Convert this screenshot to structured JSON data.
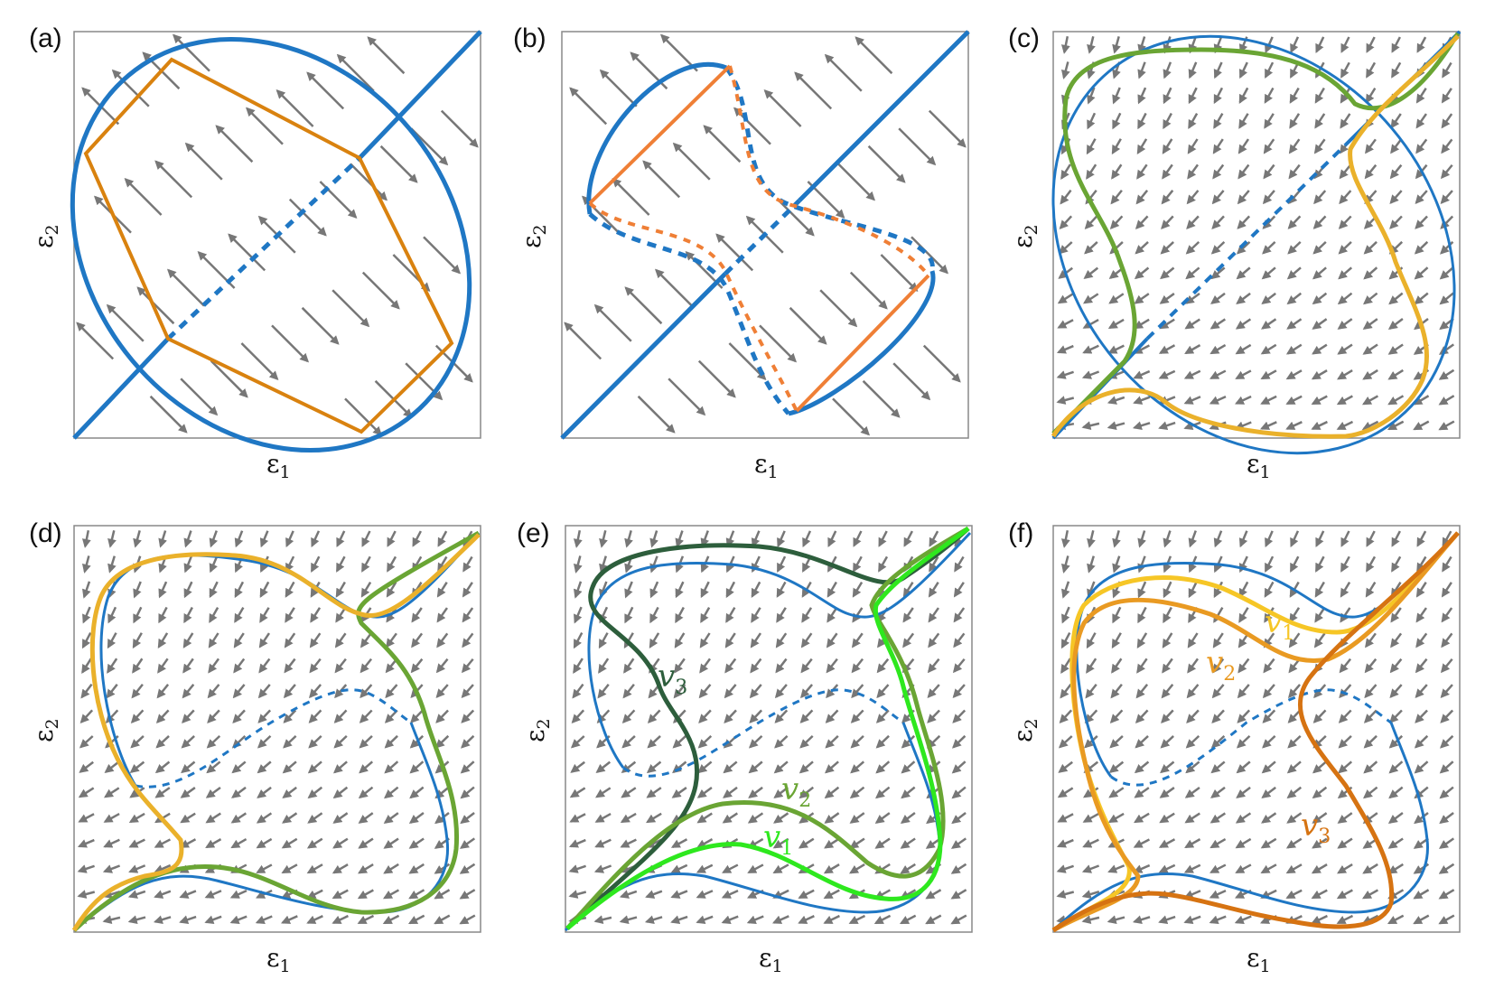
{
  "figure": {
    "colors": {
      "blue": "#1f77c4",
      "orange": "#d9820f",
      "orange_light": "#ef7f36",
      "arrow": "#777777",
      "frame": "#888888",
      "green": "#6aa534",
      "yellow": "#eab12b",
      "green_dark": "#2d5e3c",
      "green_light": "#2ee81e",
      "gold": "#f6c626",
      "orange_mid": "#e99a22",
      "orange_dark": "#d67312"
    },
    "axes": {
      "xlabel": "ε",
      "xlabel_sub": "1",
      "ylabel": "ε",
      "ylabel_sub": "2"
    },
    "panels": [
      {
        "label": "(a)",
        "field": "diagonal-long"
      },
      {
        "label": "(b)",
        "field": "diagonal-long"
      },
      {
        "label": "(c)",
        "field": "short-grid"
      },
      {
        "label": "(d)",
        "field": "short-grid"
      },
      {
        "label": "(e)",
        "field": "short-grid",
        "curve_labels": [
          {
            "text": "v",
            "sub": "3",
            "color": "#2d5e3c"
          },
          {
            "text": "v",
            "sub": "2",
            "color": "#6aa534"
          },
          {
            "text": "v",
            "sub": "1",
            "color": "#2ee81e"
          }
        ]
      },
      {
        "label": "(f)",
        "field": "short-grid",
        "curve_labels": [
          {
            "text": "v",
            "sub": "1",
            "color": "#f6c626"
          },
          {
            "text": "v",
            "sub": "2",
            "color": "#e99a22"
          },
          {
            "text": "v",
            "sub": "3",
            "color": "#d67312"
          }
        ]
      }
    ]
  }
}
